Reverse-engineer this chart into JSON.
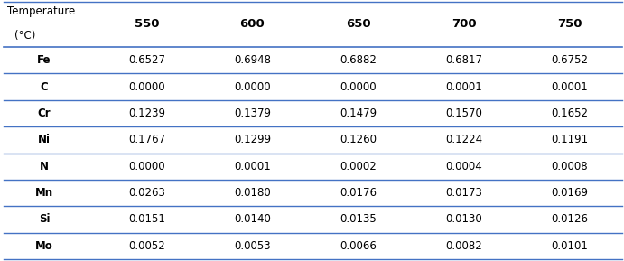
{
  "header_col_line1": "Temperature",
  "header_col_line2": "(°C)",
  "columns": [
    "550",
    "600",
    "650",
    "700",
    "750"
  ],
  "rows": [
    {
      "element": "Fe",
      "values": [
        "0.6527",
        "0.6948",
        "0.6882",
        "0.6817",
        "0.6752"
      ]
    },
    {
      "element": "C",
      "values": [
        "0.0000",
        "0.0000",
        "0.0000",
        "0.0001",
        "0.0001"
      ]
    },
    {
      "element": "Cr",
      "values": [
        "0.1239",
        "0.1379",
        "0.1479",
        "0.1570",
        "0.1652"
      ]
    },
    {
      "element": "Ni",
      "values": [
        "0.1767",
        "0.1299",
        "0.1260",
        "0.1224",
        "0.1191"
      ]
    },
    {
      "element": "N",
      "values": [
        "0.0000",
        "0.0001",
        "0.0002",
        "0.0004",
        "0.0008"
      ]
    },
    {
      "element": "Mn",
      "values": [
        "0.0263",
        "0.0180",
        "0.0176",
        "0.0173",
        "0.0169"
      ]
    },
    {
      "element": "Si",
      "values": [
        "0.0151",
        "0.0140",
        "0.0135",
        "0.0130",
        "0.0126"
      ]
    },
    {
      "element": "Mo",
      "values": [
        "0.0052",
        "0.0053",
        "0.0066",
        "0.0082",
        "0.0101"
      ]
    }
  ],
  "line_color": "#4472C4",
  "bg_color": "#ffffff",
  "text_color": "#000000",
  "header_fontsize": 8.5,
  "data_fontsize": 8.5,
  "col_header_fontsize": 9.5,
  "fig_width": 6.91,
  "fig_height": 2.89,
  "dpi": 100
}
